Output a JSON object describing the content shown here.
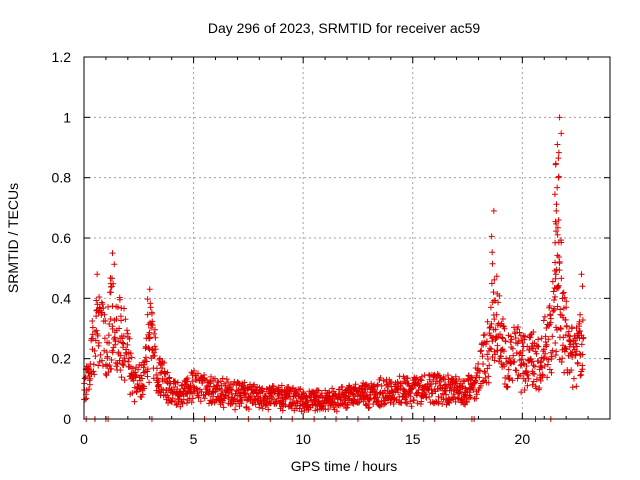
{
  "chart_data": {
    "type": "scatter",
    "title": "Day 296 of 2023, SRMTID for receiver ac59",
    "xlabel": "GPS time / hours",
    "ylabel": "SRMTID / TECUs",
    "xlim": [
      0,
      24
    ],
    "ylim": [
      0,
      1.2
    ],
    "xticks": [
      0,
      5,
      10,
      15,
      20
    ],
    "xtick_labels": [
      "0",
      "5",
      "10",
      "15",
      "20"
    ],
    "yticks": [
      0,
      0.2,
      0.4,
      0.6,
      0.8,
      1.0,
      1.2
    ],
    "ytick_labels": [
      "0",
      "0.2",
      "0.4",
      "0.6",
      "0.8",
      "1",
      "1.2"
    ],
    "grid": true,
    "marker": "+",
    "series": [
      {
        "name": "SRMTID",
        "color": "#e00000",
        "envelope_x": [
          0.0,
          0.2,
          0.4,
          0.6,
          0.8,
          1.0,
          1.2,
          1.4,
          1.6,
          1.8,
          2.0,
          2.2,
          2.4,
          2.6,
          2.8,
          3.0,
          3.2,
          3.4,
          3.6,
          3.8,
          4.0,
          4.5,
          5.0,
          5.5,
          6.0,
          7.0,
          8.0,
          9.0,
          10.0,
          11.0,
          12.0,
          13.0,
          14.0,
          15.0,
          16.0,
          17.0,
          17.5,
          17.8,
          18.0,
          18.2,
          18.4,
          18.6,
          18.8,
          19.0,
          19.2,
          19.4,
          19.6,
          19.8,
          20.0,
          20.2,
          20.4,
          20.6,
          20.8,
          21.0,
          21.2,
          21.4,
          21.6,
          21.8,
          22.0,
          22.2,
          22.4,
          22.6,
          22.8
        ],
        "envelope_y": [
          0.12,
          0.13,
          0.25,
          0.32,
          0.3,
          0.27,
          0.35,
          0.34,
          0.3,
          0.28,
          0.22,
          0.14,
          0.12,
          0.14,
          0.18,
          0.3,
          0.25,
          0.15,
          0.14,
          0.12,
          0.1,
          0.09,
          0.12,
          0.11,
          0.1,
          0.09,
          0.08,
          0.08,
          0.07,
          0.07,
          0.08,
          0.09,
          0.1,
          0.1,
          0.11,
          0.1,
          0.11,
          0.12,
          0.16,
          0.22,
          0.25,
          0.3,
          0.35,
          0.28,
          0.22,
          0.2,
          0.24,
          0.22,
          0.2,
          0.22,
          0.23,
          0.22,
          0.2,
          0.24,
          0.28,
          0.33,
          0.42,
          0.38,
          0.3,
          0.24,
          0.2,
          0.25,
          0.28
        ],
        "peaks": [
          {
            "x": 0.6,
            "y": 0.48
          },
          {
            "x": 1.3,
            "y": 0.55
          },
          {
            "x": 3.0,
            "y": 0.43
          },
          {
            "x": 18.7,
            "y": 0.69
          },
          {
            "x": 21.7,
            "y": 1.0
          },
          {
            "x": 21.6,
            "y": 0.91
          },
          {
            "x": 21.65,
            "y": 0.8
          },
          {
            "x": 21.55,
            "y": 0.69
          },
          {
            "x": 22.7,
            "y": 0.48
          }
        ],
        "zero_points_x": [
          0.1,
          0.5,
          1.0,
          1.1,
          3.1,
          5.0,
          5.5,
          6.0,
          7.5,
          8.5,
          9.5,
          10.5,
          11.5,
          12.5,
          14.5,
          15.5,
          16.0,
          17.7,
          17.8,
          20.6,
          21.3
        ]
      }
    ]
  }
}
